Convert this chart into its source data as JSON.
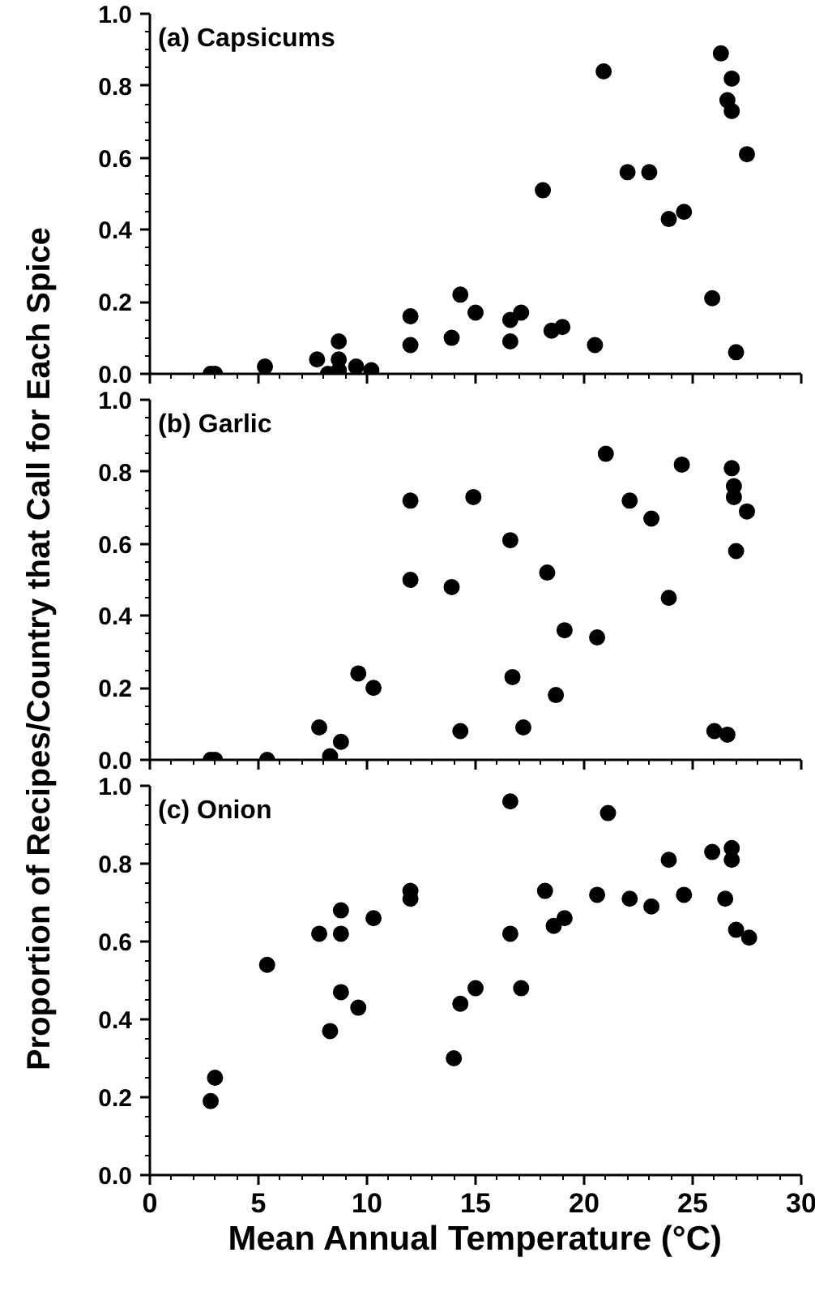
{
  "chart_data": [
    {
      "type": "scatter",
      "title": "(a) Capsicums",
      "marker": "circle",
      "grid": false,
      "tick_labels": "y",
      "xlim": [
        0,
        30
      ],
      "xticks": [
        {
          "value": 0,
          "label": null
        },
        {
          "value": 5,
          "label": null
        },
        {
          "value": 10,
          "label": null
        },
        {
          "value": 15,
          "label": null
        },
        {
          "value": 20,
          "label": null
        },
        {
          "value": 25,
          "label": null
        },
        {
          "value": 30,
          "label": null
        }
      ],
      "ylim": [
        0,
        1
      ],
      "yticks": [
        {
          "value": 0,
          "label": "0.0"
        },
        {
          "value": 0.2,
          "label": "0.2"
        },
        {
          "value": 0.4,
          "label": "0.4"
        },
        {
          "value": 0.6,
          "label": "0.6"
        },
        {
          "value": 0.8,
          "label": "0.8"
        },
        {
          "value": 1,
          "label": "1.0"
        }
      ],
      "series": [
        {
          "color": "#000000",
          "x": [
            2.8,
            3.0,
            5.3,
            7.7,
            8.2,
            8.7,
            8.7,
            8.7,
            9.5,
            10.2,
            12,
            12,
            13.9,
            14.3,
            15,
            16.6,
            16.6,
            17.1,
            18.1,
            18.5,
            19,
            20.5,
            20.9,
            22,
            23,
            23.9,
            24.6,
            25.9,
            26.3,
            26.6,
            26.8,
            26.8,
            27.0,
            27.5
          ],
          "values": [
            0,
            0,
            0.02,
            0.04,
            0,
            0.04,
            0.09,
            0.01,
            0.02,
            0.01,
            0.16,
            0.08,
            0.1,
            0.22,
            0.17,
            0.15,
            0.09,
            0.17,
            0.51,
            0.12,
            0.13,
            0.08,
            0.84,
            0.56,
            0.56,
            0.43,
            0.45,
            0.21,
            0.89,
            0.76,
            0.82,
            0.73,
            0.06,
            0.61
          ]
        }
      ]
    },
    {
      "type": "scatter",
      "title": "(b) Garlic",
      "ylabel": "Proportion of Recipes/Country that Call for Each Spice",
      "marker": "circle",
      "grid": false,
      "tick_labels": "y",
      "xlim": [
        0,
        30
      ],
      "xticks": [
        {
          "value": 0,
          "label": null
        },
        {
          "value": 5,
          "label": null
        },
        {
          "value": 10,
          "label": null
        },
        {
          "value": 15,
          "label": null
        },
        {
          "value": 20,
          "label": null
        },
        {
          "value": 25,
          "label": null
        },
        {
          "value": 30,
          "label": null
        }
      ],
      "ylim": [
        0,
        1
      ],
      "yticks": [
        {
          "value": 0,
          "label": "0.0"
        },
        {
          "value": 0.2,
          "label": "0.2"
        },
        {
          "value": 0.4,
          "label": "0.4"
        },
        {
          "value": 0.6,
          "label": "0.6"
        },
        {
          "value": 0.8,
          "label": "0.8"
        },
        {
          "value": 1,
          "label": "1.0"
        }
      ],
      "series": [
        {
          "color": "#000000",
          "x": [
            2.8,
            3.0,
            5.4,
            7.8,
            8.3,
            8.8,
            9.6,
            10.3,
            12,
            12,
            13.9,
            14.3,
            14.9,
            16.6,
            16.7,
            17.2,
            18.3,
            18.7,
            19.1,
            20.6,
            21,
            22.1,
            23.1,
            23.9,
            24.5,
            26,
            26.6,
            26.8,
            26.9,
            26.9,
            27.0,
            27.5
          ],
          "values": [
            0,
            0,
            0,
            0.09,
            0.01,
            0.05,
            0.24,
            0.2,
            0.72,
            0.5,
            0.48,
            0.08,
            0.73,
            0.61,
            0.23,
            0.09,
            0.52,
            0.18,
            0.36,
            0.34,
            0.85,
            0.72,
            0.67,
            0.45,
            0.82,
            0.08,
            0.07,
            0.81,
            0.76,
            0.73,
            0.58,
            0.69
          ]
        }
      ]
    },
    {
      "type": "scatter",
      "title": "(c) Onion",
      "xlabel": "Mean Annual Temperature (°C)",
      "marker": "circle",
      "grid": false,
      "xlim": [
        0,
        30
      ],
      "xticks": [
        0,
        5,
        10,
        15,
        20,
        25,
        30
      ],
      "ylim": [
        0,
        1
      ],
      "yticks": [
        {
          "value": 0,
          "label": "0.0"
        },
        {
          "value": 0.2,
          "label": "0.2"
        },
        {
          "value": 0.4,
          "label": "0.4"
        },
        {
          "value": 0.6,
          "label": "0.6"
        },
        {
          "value": 0.8,
          "label": "0.8"
        },
        {
          "value": 1,
          "label": "1.0"
        }
      ],
      "series": [
        {
          "color": "#000000",
          "x": [
            2.8,
            3.0,
            5.4,
            7.8,
            8.3,
            8.8,
            8.8,
            8.8,
            9.6,
            10.3,
            12,
            12,
            14,
            14.3,
            15,
            16.6,
            16.6,
            17.1,
            18.2,
            18.6,
            19.1,
            20.6,
            21.1,
            22.1,
            23.1,
            23.9,
            24.6,
            25.9,
            26.5,
            26.8,
            26.8,
            27,
            27.6
          ],
          "values": [
            0.19,
            0.25,
            0.54,
            0.62,
            0.37,
            0.68,
            0.62,
            0.47,
            0.43,
            0.66,
            0.73,
            0.71,
            0.3,
            0.44,
            0.48,
            0.96,
            0.62,
            0.48,
            0.73,
            0.64,
            0.66,
            0.72,
            0.93,
            0.71,
            0.69,
            0.81,
            0.72,
            0.83,
            0.71,
            0.84,
            0.81,
            0.63,
            0.61
          ]
        }
      ]
    }
  ]
}
